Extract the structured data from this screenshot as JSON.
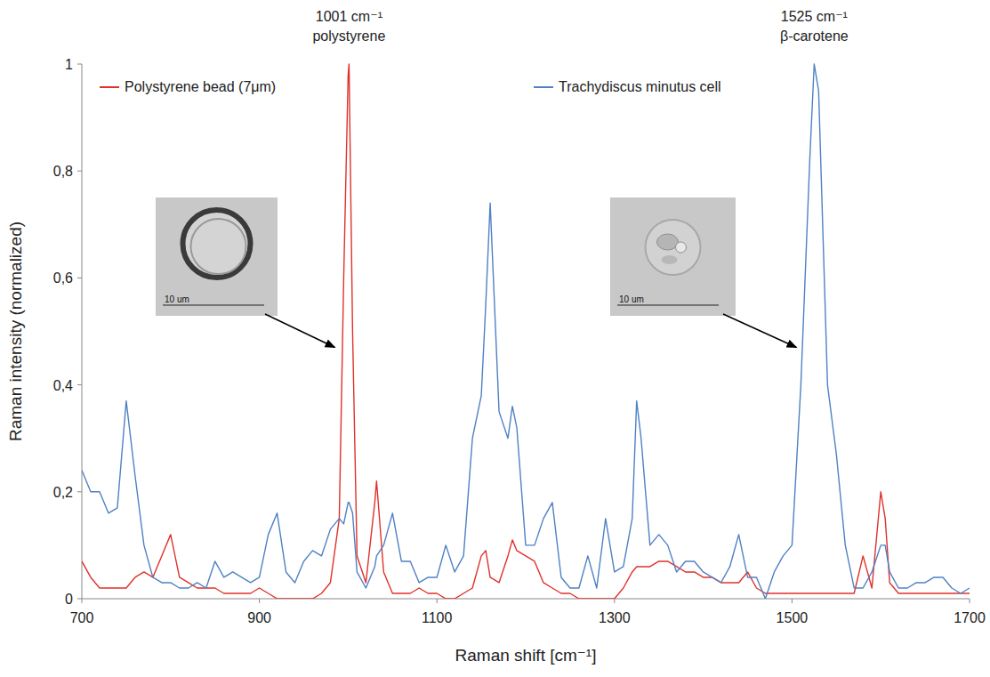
{
  "chart_data": {
    "type": "line",
    "x_label": "Raman shift [cm⁻¹]",
    "y_label": "Raman intensity (normalized)",
    "xlim": [
      700,
      1700
    ],
    "xticks": [
      700,
      900,
      1100,
      1300,
      1500,
      1700
    ],
    "ylim": [
      0,
      1
    ],
    "yticks": [
      0,
      {
        "value": 0.2,
        "label": "0,2"
      },
      {
        "value": 0.4,
        "label": "0,4"
      },
      {
        "value": 0.6,
        "label": "0,6"
      },
      {
        "value": 0.8,
        "label": "0,8"
      },
      1
    ],
    "grid": false,
    "legend": "top",
    "x": [
      700,
      710,
      720,
      730,
      740,
      750,
      760,
      770,
      780,
      790,
      800,
      810,
      820,
      830,
      840,
      850,
      860,
      870,
      880,
      890,
      900,
      910,
      920,
      930,
      940,
      950,
      960,
      970,
      980,
      990,
      995,
      1000,
      1001,
      1005,
      1010,
      1020,
      1030,
      1032,
      1040,
      1050,
      1060,
      1070,
      1080,
      1090,
      1100,
      1110,
      1120,
      1130,
      1140,
      1150,
      1155,
      1160,
      1170,
      1180,
      1185,
      1190,
      1200,
      1210,
      1220,
      1230,
      1240,
      1250,
      1260,
      1270,
      1280,
      1290,
      1300,
      1310,
      1320,
      1325,
      1330,
      1340,
      1350,
      1360,
      1370,
      1380,
      1390,
      1400,
      1410,
      1420,
      1430,
      1440,
      1450,
      1460,
      1470,
      1480,
      1490,
      1500,
      1510,
      1520,
      1525,
      1530,
      1540,
      1550,
      1560,
      1570,
      1580,
      1590,
      1600,
      1605,
      1610,
      1620,
      1630,
      1640,
      1650,
      1660,
      1670,
      1680,
      1690,
      1700
    ],
    "series": [
      {
        "name": "Polystyrene bead (7μm)",
        "color": "#e0312b",
        "values": [
          0.07,
          0.04,
          0.02,
          0.02,
          0.02,
          0.02,
          0.04,
          0.05,
          0.04,
          0.08,
          0.12,
          0.04,
          0.03,
          0.02,
          0.02,
          0.02,
          0.01,
          0.01,
          0.01,
          0.01,
          0.02,
          0.01,
          0.0,
          0.0,
          0.0,
          0.0,
          0.0,
          0.01,
          0.03,
          0.15,
          0.6,
          0.98,
          1.0,
          0.5,
          0.08,
          0.03,
          0.18,
          0.22,
          0.05,
          0.01,
          0.01,
          0.01,
          0.02,
          0.01,
          0.01,
          0.0,
          0.0,
          0.01,
          0.02,
          0.08,
          0.09,
          0.04,
          0.03,
          0.08,
          0.11,
          0.09,
          0.08,
          0.07,
          0.03,
          0.02,
          0.01,
          0.01,
          0.0,
          0.0,
          0.0,
          0.0,
          0.0,
          0.02,
          0.05,
          0.06,
          0.06,
          0.06,
          0.07,
          0.07,
          0.06,
          0.05,
          0.05,
          0.04,
          0.04,
          0.03,
          0.03,
          0.03,
          0.05,
          0.02,
          0.01,
          0.01,
          0.01,
          0.01,
          0.01,
          0.01,
          0.01,
          0.01,
          0.01,
          0.01,
          0.01,
          0.01,
          0.08,
          0.02,
          0.2,
          0.15,
          0.03,
          0.01,
          0.01,
          0.01,
          0.01,
          0.01,
          0.01,
          0.01,
          0.01,
          0.01
        ]
      },
      {
        "name": "Trachydiscus minutus cell",
        "color": "#4f81c4",
        "values": [
          0.24,
          0.2,
          0.2,
          0.16,
          0.17,
          0.37,
          0.23,
          0.1,
          0.04,
          0.03,
          0.03,
          0.02,
          0.02,
          0.03,
          0.02,
          0.07,
          0.04,
          0.05,
          0.04,
          0.03,
          0.04,
          0.12,
          0.16,
          0.05,
          0.03,
          0.07,
          0.09,
          0.08,
          0.13,
          0.15,
          0.14,
          0.18,
          0.18,
          0.16,
          0.05,
          0.02,
          0.06,
          0.08,
          0.1,
          0.16,
          0.07,
          0.07,
          0.03,
          0.04,
          0.04,
          0.1,
          0.05,
          0.08,
          0.3,
          0.38,
          0.55,
          0.74,
          0.35,
          0.3,
          0.36,
          0.32,
          0.1,
          0.1,
          0.15,
          0.18,
          0.04,
          0.02,
          0.02,
          0.08,
          0.02,
          0.15,
          0.05,
          0.06,
          0.15,
          0.37,
          0.3,
          0.1,
          0.12,
          0.1,
          0.05,
          0.07,
          0.07,
          0.05,
          0.04,
          0.03,
          0.06,
          0.12,
          0.04,
          0.04,
          0.0,
          0.05,
          0.08,
          0.1,
          0.4,
          0.82,
          1.0,
          0.95,
          0.4,
          0.27,
          0.1,
          0.02,
          0.02,
          0.05,
          0.1,
          0.1,
          0.05,
          0.02,
          0.02,
          0.03,
          0.03,
          0.04,
          0.04,
          0.02,
          0.01,
          0.02
        ]
      }
    ],
    "annotations": [
      {
        "lines": [
          "1001 cm⁻¹",
          "polystyrene"
        ],
        "x": 1001
      },
      {
        "lines": [
          "1525 cm⁻¹",
          "β-carotene"
        ],
        "x": 1525
      }
    ],
    "insets": [
      {
        "scale_bar": "10 um",
        "target": {
          "x": 985,
          "y": 0.47
        }
      },
      {
        "scale_bar": "10 um",
        "target": {
          "x": 1505,
          "y": 0.47
        }
      }
    ]
  }
}
